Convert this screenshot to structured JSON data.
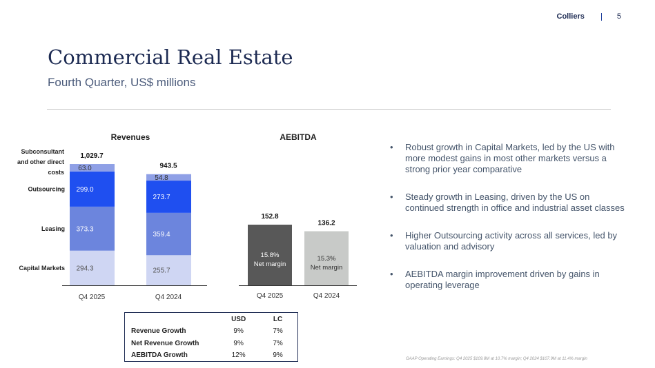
{
  "header": {
    "brand": "Colliers",
    "page_number": "5"
  },
  "title": "Commercial Real Estate",
  "subtitle": "Fourth Quarter, US$ millions",
  "bullets": [
    "Robust growth in Capital Markets, led by the US with more modest gains in most other markets versus a strong prior year comparative",
    "Steady growth in Leasing, driven by the US on continued strength in office and industrial asset classes",
    "Higher Outsourcing activity across all services, led by valuation and advisory",
    "AEBITDA margin improvement driven by gains in operating leverage"
  ],
  "footnote": "GAAP Operating Earnings: Q4 2025 $109.8M at 10.7% margin; Q4 2024 $107.9M at 11.4% margin",
  "growth_table": {
    "headers": [
      "",
      "USD",
      "LC"
    ],
    "rows": [
      {
        "label": "Revenue Growth",
        "usd": "9%",
        "lc": "7%"
      },
      {
        "label": "Net Revenue Growth",
        "usd": "9%",
        "lc": "7%"
      },
      {
        "label": "AEBITDA Growth",
        "usd": "12%",
        "lc": "9%"
      }
    ]
  },
  "colors": {
    "capital_markets": "#cfd6f3",
    "leasing": "#6c85dd",
    "outsourcing": "#1f4ff0",
    "subconsultant": "#8fa0e6",
    "aebitda_2025": "#585858",
    "aebitda_2024": "#c8cac8",
    "navy": "#1c2a52"
  },
  "chart_data": [
    {
      "type": "bar",
      "stacked": true,
      "title": "Revenues",
      "categories": [
        "Q4 2025",
        "Q4 2024"
      ],
      "series": [
        {
          "name": "Capital Markets",
          "values": [
            294.3,
            255.7
          ],
          "labels": [
            "294.3",
            "255.7"
          ],
          "color": "#cfd6f3",
          "text_color": "#555555"
        },
        {
          "name": "Leasing",
          "values": [
            373.3,
            359.4
          ],
          "labels": [
            "373.3",
            "359.4"
          ],
          "color": "#6c85dd",
          "text_color": "#ffffff"
        },
        {
          "name": "Outsourcing",
          "values": [
            299.0,
            273.7
          ],
          "labels": [
            "299.0",
            "273.7"
          ],
          "color": "#1f4ff0",
          "text_color": "#ffffff"
        },
        {
          "name": "Subconsultant and other direct costs",
          "values": [
            63.0,
            54.8
          ],
          "labels": [
            "63.0",
            "54.8"
          ],
          "color": "#8fa0e6",
          "text_color": "#333333"
        }
      ],
      "totals": [
        "1,029.7",
        "943.5"
      ],
      "total_values": [
        1029.7,
        943.5
      ]
    },
    {
      "type": "bar",
      "title": "AEBITDA",
      "categories": [
        "Q4 2025",
        "Q4 2024"
      ],
      "values": [
        152.8,
        136.2
      ],
      "value_labels": [
        "152.8",
        "136.2"
      ],
      "margins": [
        "15.8%",
        "15.3%"
      ],
      "margin_label": "Net margin",
      "colors": [
        "#585858",
        "#c8cac8"
      ],
      "inner_text_colors": [
        "#ffffff",
        "#333333"
      ]
    }
  ]
}
